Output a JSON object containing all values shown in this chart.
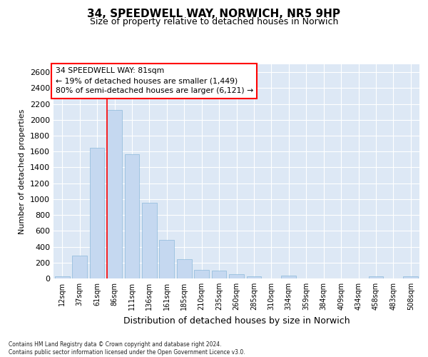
{
  "title_line1": "34, SPEEDWELL WAY, NORWICH, NR5 9HP",
  "title_line2": "Size of property relative to detached houses in Norwich",
  "xlabel": "Distribution of detached houses by size in Norwich",
  "ylabel": "Number of detached properties",
  "bar_labels": [
    "12sqm",
    "37sqm",
    "61sqm",
    "86sqm",
    "111sqm",
    "136sqm",
    "161sqm",
    "185sqm",
    "210sqm",
    "235sqm",
    "260sqm",
    "285sqm",
    "310sqm",
    "334sqm",
    "359sqm",
    "384sqm",
    "409sqm",
    "434sqm",
    "458sqm",
    "483sqm",
    "508sqm"
  ],
  "bar_values": [
    25,
    285,
    1650,
    2120,
    1570,
    950,
    490,
    245,
    110,
    95,
    50,
    30,
    0,
    35,
    0,
    0,
    0,
    0,
    25,
    0,
    25
  ],
  "bar_color": "#c5d8f0",
  "bar_edge_color": "#7aafd4",
  "vline_x_index": 3,
  "vline_color": "red",
  "annotation_text": "34 SPEEDWELL WAY: 81sqm\n← 19% of detached houses are smaller (1,449)\n80% of semi-detached houses are larger (6,121) →",
  "ylim_max": 2700,
  "yticks": [
    0,
    200,
    400,
    600,
    800,
    1000,
    1200,
    1400,
    1600,
    1800,
    2000,
    2200,
    2400,
    2600
  ],
  "footer_line1": "Contains HM Land Registry data © Crown copyright and database right 2024.",
  "footer_line2": "Contains public sector information licensed under the Open Government Licence v3.0.",
  "plot_bg_color": "#dde8f5",
  "grid_color": "#ffffff",
  "title1_fontsize": 11,
  "title2_fontsize": 9,
  "ylabel_fontsize": 8,
  "xlabel_fontsize": 9,
  "ytick_fontsize": 8,
  "xtick_fontsize": 7
}
